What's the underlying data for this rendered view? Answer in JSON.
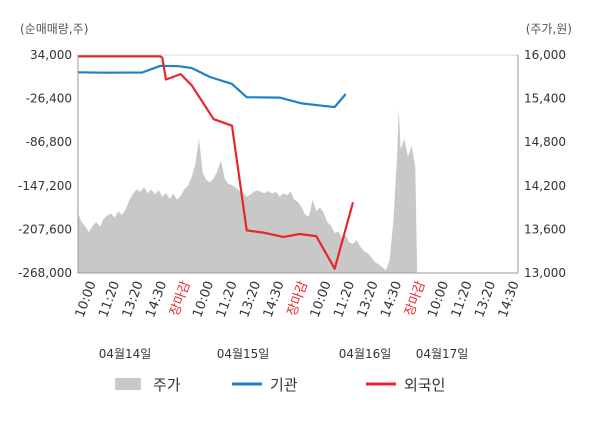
{
  "chart_data": {
    "type": "line",
    "left_axis": {
      "unit": "(순매매량,주)",
      "range": [
        -268000,
        34000
      ],
      "ticks": [
        "34,000",
        "-26,400",
        "-86,800",
        "-147,200",
        "-207,600",
        "-268,000"
      ]
    },
    "right_axis": {
      "unit": "(주가,원)",
      "range": [
        13000,
        16000
      ],
      "ticks": [
        "16,000",
        "15,400",
        "14,800",
        "14,200",
        "13,600",
        "13,000"
      ]
    },
    "x_tick_labels": [
      "10:00",
      "11:20",
      "13:20",
      "14:30",
      "장마감",
      "10:00",
      "11:20",
      "13:20",
      "14:30",
      "장마감",
      "10:00",
      "11:20",
      "13:20",
      "14:30",
      "장마감",
      "10:00",
      "11:20",
      "13:20",
      "14:30"
    ],
    "x_tick_market_flags": [
      false,
      false,
      false,
      false,
      true,
      false,
      false,
      false,
      false,
      true,
      false,
      false,
      false,
      false,
      true,
      false,
      false,
      false,
      false
    ],
    "date_labels": [
      "04월14일",
      "04월15일",
      "04월16일",
      "04월17일"
    ],
    "series": [
      {
        "name": "주가",
        "style": "area",
        "color": "#c8c8c8",
        "axis": "right",
        "note": "price values in KRW, index positions along the trading timeline",
        "points": [
          [
            0,
            13820
          ],
          [
            2,
            13700
          ],
          [
            4,
            13640
          ],
          [
            6,
            13560
          ],
          [
            8,
            13650
          ],
          [
            10,
            13700
          ],
          [
            12,
            13640
          ],
          [
            14,
            13750
          ],
          [
            16,
            13790
          ],
          [
            18,
            13820
          ],
          [
            20,
            13760
          ],
          [
            22,
            13850
          ],
          [
            24,
            13800
          ],
          [
            26,
            13880
          ],
          [
            28,
            14000
          ],
          [
            30,
            14090
          ],
          [
            32,
            14150
          ],
          [
            34,
            14120
          ],
          [
            36,
            14180
          ],
          [
            38,
            14100
          ],
          [
            40,
            14150
          ],
          [
            42,
            14080
          ],
          [
            44,
            14140
          ],
          [
            46,
            14050
          ],
          [
            48,
            14100
          ],
          [
            50,
            14020
          ],
          [
            52,
            14090
          ],
          [
            54,
            14010
          ],
          [
            56,
            14060
          ],
          [
            58,
            14150
          ],
          [
            60,
            14200
          ],
          [
            62,
            14320
          ],
          [
            64,
            14500
          ],
          [
            66,
            14850
          ],
          [
            67,
            14620
          ],
          [
            68,
            14380
          ],
          [
            70,
            14280
          ],
          [
            72,
            14250
          ],
          [
            74,
            14300
          ],
          [
            76,
            14400
          ],
          [
            78,
            14550
          ],
          [
            80,
            14300
          ],
          [
            82,
            14230
          ],
          [
            84,
            14210
          ],
          [
            86,
            14180
          ],
          [
            88,
            14130
          ],
          [
            90,
            14100
          ],
          [
            92,
            14050
          ],
          [
            94,
            14080
          ],
          [
            96,
            14120
          ],
          [
            98,
            14140
          ],
          [
            100,
            14110
          ],
          [
            102,
            14100
          ],
          [
            104,
            14130
          ],
          [
            106,
            14090
          ],
          [
            108,
            14120
          ],
          [
            110,
            14050
          ],
          [
            112,
            14100
          ],
          [
            114,
            14070
          ],
          [
            116,
            14120
          ],
          [
            118,
            14010
          ],
          [
            120,
            13980
          ],
          [
            122,
            13900
          ],
          [
            124,
            13800
          ],
          [
            126,
            13780
          ],
          [
            128,
            14010
          ],
          [
            130,
            13850
          ],
          [
            132,
            13900
          ],
          [
            134,
            13830
          ],
          [
            136,
            13700
          ],
          [
            138,
            13650
          ],
          [
            140,
            13550
          ],
          [
            142,
            13570
          ],
          [
            144,
            13480
          ],
          [
            146,
            13520
          ],
          [
            148,
            13420
          ],
          [
            150,
            13400
          ],
          [
            152,
            13450
          ],
          [
            154,
            13360
          ],
          [
            156,
            13300
          ],
          [
            158,
            13270
          ],
          [
            160,
            13220
          ],
          [
            162,
            13150
          ],
          [
            164,
            13120
          ],
          [
            166,
            13080
          ],
          [
            168,
            13040
          ],
          [
            170,
            13180
          ],
          [
            172,
            13700
          ],
          [
            174,
            14600
          ],
          [
            175,
            15250
          ],
          [
            176,
            14700
          ],
          [
            178,
            14850
          ],
          [
            180,
            14600
          ],
          [
            182,
            14750
          ],
          [
            184,
            14450
          ],
          [
            185,
            13000
          ]
        ]
      },
      {
        "name": "기관",
        "style": "line",
        "color": "#1f7fc8",
        "axis": "left",
        "note": "cumulative net purchase volume (shares)",
        "points": [
          [
            0,
            10000
          ],
          [
            15,
            9500
          ],
          [
            35,
            9800
          ],
          [
            45,
            19000
          ],
          [
            55,
            18500
          ],
          [
            62,
            16000
          ],
          [
            72,
            3500
          ],
          [
            84,
            -6000
          ],
          [
            92,
            -24500
          ],
          [
            110,
            -25000
          ],
          [
            122,
            -33000
          ],
          [
            136,
            -37000
          ],
          [
            140,
            -38000
          ],
          [
            146,
            -20000
          ]
        ]
      },
      {
        "name": "외국인",
        "style": "line",
        "color": "#e8262b",
        "axis": "left",
        "note": "cumulative net purchase volume (shares)",
        "points": [
          [
            0,
            32000
          ],
          [
            45,
            32000
          ],
          [
            46,
            30000
          ],
          [
            48,
            0
          ],
          [
            56,
            7500
          ],
          [
            62,
            -8000
          ],
          [
            74,
            -55000
          ],
          [
            84,
            -64000
          ],
          [
            92,
            -209000
          ],
          [
            101,
            -212000
          ],
          [
            112,
            -218000
          ],
          [
            121,
            -214000
          ],
          [
            130,
            -217000
          ],
          [
            140,
            -262000
          ],
          [
            150,
            -170000
          ]
        ]
      }
    ],
    "grid": false,
    "legend": "bottom"
  }
}
